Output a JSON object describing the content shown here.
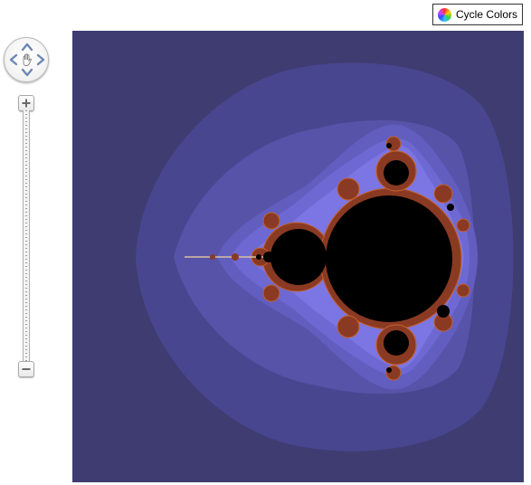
{
  "toolbar": {
    "cycle_colors_label": "Cycle Colors",
    "cycle_colors_icon": "color-wheel-icon"
  },
  "map_controls": {
    "pan_icons": [
      "pan-up-icon",
      "pan-down-icon",
      "pan-left-icon",
      "pan-right-icon",
      "hand-icon"
    ],
    "zoom_in_icon": "plus-icon",
    "zoom_out_icon": "minus-icon"
  },
  "fractal": {
    "name_icon": "mandelbrot-set",
    "colors": {
      "background": "#3f3c72",
      "band_1": "#4a4790",
      "band_2": "#5955ac",
      "band_3": "#6763c4",
      "band_4": "#7670dc",
      "band_5": "#8580ee",
      "set": "#000000",
      "edge": "#8a3a22"
    }
  }
}
